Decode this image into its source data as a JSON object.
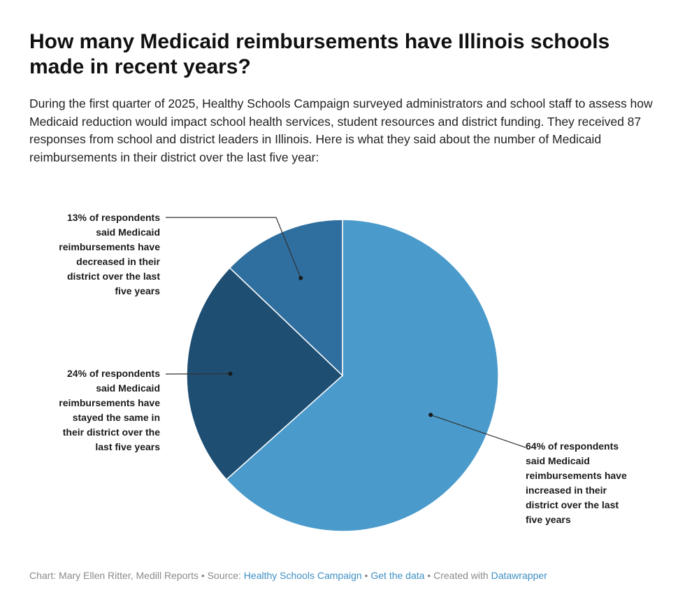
{
  "chart_data": {
    "type": "pie",
    "title": "How many Medicaid reimbursements have Illinois schools made in recent years?",
    "subtitle": "During the first quarter of 2025, Healthy Schools Campaign surveyed administrators and school staff to assess how Medicaid reduction would impact school health services, student resources and district funding. They received 87 responses from school and district leaders in Illinois. Here is what they said about the number of Medicaid reimbursements in their district over the last five year:",
    "slices": [
      {
        "label": "Increased",
        "value": 64,
        "color": "#4a9acb",
        "annotation": [
          "64% of respondents",
          "said Medicaid",
          "reimbursements have",
          "increased in their",
          "district over the last",
          "five years"
        ]
      },
      {
        "label": "Stayed the same",
        "value": 24,
        "color": "#1e4e72",
        "annotation": [
          "24% of respondents",
          "said Medicaid",
          "reimbursements have",
          "stayed the same in",
          "their district over the",
          "last five years"
        ]
      },
      {
        "label": "Decreased",
        "value": 13,
        "color": "#2f6f9f",
        "annotation": [
          "13% of respondents",
          "said Medicaid",
          "reimbursements have",
          "decreased in their",
          "district over the last",
          "five years"
        ]
      }
    ]
  },
  "footer": {
    "credit": "Chart: Mary Ellen Ritter, Medill Reports",
    "separator": " • ",
    "source_prefix": "Source: ",
    "source_link": "Healthy Schools Campaign",
    "get_data": "Get the data",
    "created_with": "Created with ",
    "tool_link": "Datawrapper"
  }
}
